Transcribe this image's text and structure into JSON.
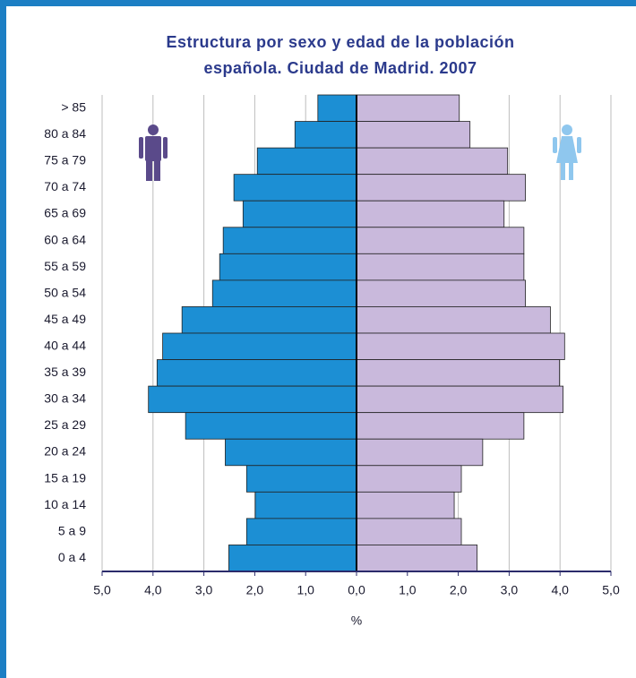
{
  "chart_data": {
    "type": "pyramid",
    "title": [
      "Estructura por sexo y edad de la población",
      "española. Ciudad de Madrid. 2007"
    ],
    "xlabel": "%",
    "categories": [
      "> 85",
      "80 a 84",
      "75 a 79",
      "70 a 74",
      "65 a 69",
      "60 a 64",
      "55 a 59",
      "50 a 54",
      "45 a 49",
      "40 a 44",
      "35 a 39",
      "30 a 34",
      "25 a 29",
      "20 a 24",
      "15 a 19",
      "10 a 14",
      "5 a 9",
      "0 a 4"
    ],
    "series": [
      {
        "side": "left",
        "color": "#1c8fd4",
        "values": [
          0.76,
          1.21,
          1.95,
          2.41,
          2.23,
          2.62,
          2.69,
          2.83,
          3.43,
          3.81,
          3.92,
          4.09,
          3.36,
          2.58,
          2.16,
          1.99,
          2.16,
          2.51
        ]
      },
      {
        "side": "right",
        "color": "#c9b9dc",
        "values": [
          2.02,
          2.23,
          2.97,
          3.32,
          2.9,
          3.29,
          3.29,
          3.32,
          3.81,
          4.09,
          3.99,
          4.06,
          3.29,
          2.48,
          2.06,
          1.92,
          2.06,
          2.37
        ]
      }
    ],
    "xlim": [
      0,
      5
    ],
    "xticks_left": [
      {
        "value": 5,
        "label": "5,0"
      },
      {
        "value": 4,
        "label": "4,0"
      },
      {
        "value": 3,
        "label": "3,0"
      },
      {
        "value": 2,
        "label": "2,0"
      },
      {
        "value": 1,
        "label": "1,0"
      },
      {
        "value": 0,
        "label": "0,0"
      }
    ],
    "xticks_right": [
      {
        "value": 1,
        "label": "1,0"
      },
      {
        "value": 2,
        "label": "2,0"
      },
      {
        "value": 3,
        "label": "3,0"
      },
      {
        "value": 4,
        "label": "4,0"
      },
      {
        "value": 5,
        "label": "5,0"
      }
    ],
    "grid": true
  }
}
